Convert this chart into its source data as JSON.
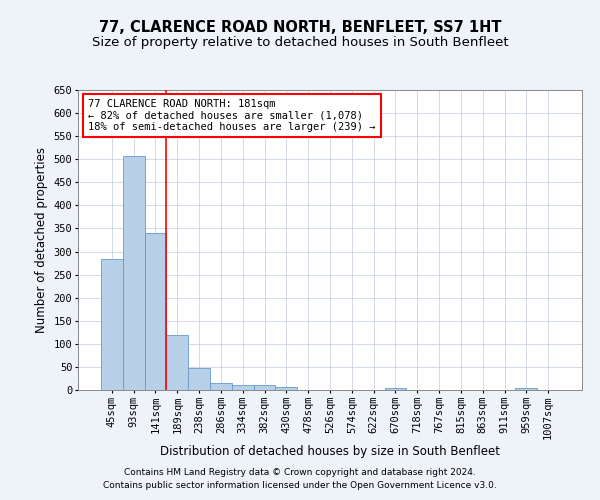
{
  "title": "77, CLARENCE ROAD NORTH, BENFLEET, SS7 1HT",
  "subtitle": "Size of property relative to detached houses in South Benfleet",
  "xlabel": "Distribution of detached houses by size in South Benfleet",
  "ylabel": "Number of detached properties",
  "categories": [
    "45sqm",
    "93sqm",
    "141sqm",
    "189sqm",
    "238sqm",
    "286sqm",
    "334sqm",
    "382sqm",
    "430sqm",
    "478sqm",
    "526sqm",
    "574sqm",
    "622sqm",
    "670sqm",
    "718sqm",
    "767sqm",
    "815sqm",
    "863sqm",
    "911sqm",
    "959sqm",
    "1007sqm"
  ],
  "values": [
    283,
    507,
    340,
    120,
    47,
    16,
    11,
    11,
    7,
    0,
    0,
    0,
    0,
    5,
    0,
    0,
    0,
    0,
    0,
    5,
    0
  ],
  "bar_color": "#b8cfe8",
  "bar_edge_color": "#6699cc",
  "vline_x_index": 2.5,
  "annotation_text_lines": [
    "77 CLARENCE ROAD NORTH: 181sqm",
    "← 82% of detached houses are smaller (1,078)",
    "18% of semi-detached houses are larger (239) →"
  ],
  "annotation_box_color": "white",
  "annotation_box_edge_color": "red",
  "vline_color": "red",
  "ylim": [
    0,
    650
  ],
  "yticks": [
    0,
    50,
    100,
    150,
    200,
    250,
    300,
    350,
    400,
    450,
    500,
    550,
    600,
    650
  ],
  "footnote1": "Contains HM Land Registry data © Crown copyright and database right 2024.",
  "footnote2": "Contains public sector information licensed under the Open Government Licence v3.0.",
  "title_fontsize": 10.5,
  "subtitle_fontsize": 9.5,
  "axis_label_fontsize": 8.5,
  "tick_fontsize": 7.5,
  "annotation_fontsize": 7.5,
  "footnote_fontsize": 6.5,
  "bg_color": "#eef2f9",
  "plot_bg_color": "white",
  "grid_color": "#c0cce0"
}
